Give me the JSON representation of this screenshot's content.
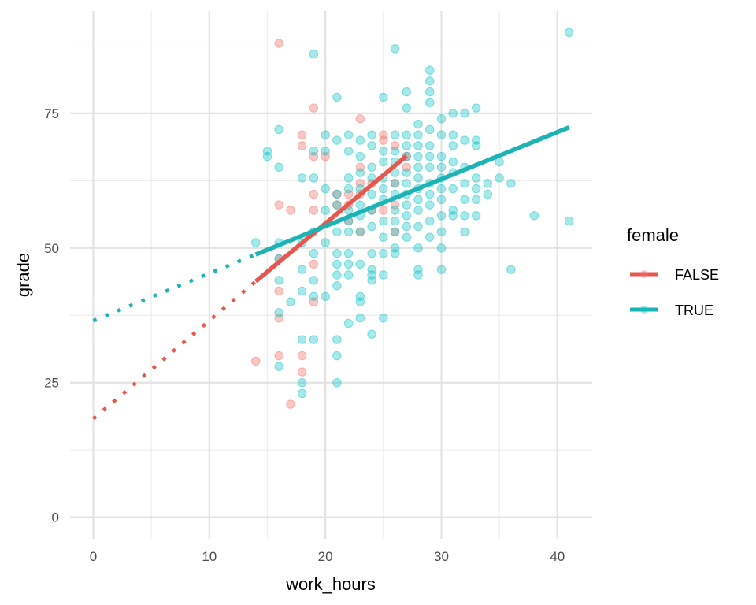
{
  "chart_data": {
    "type": "scatter",
    "title": "",
    "xlabel": "work_hours",
    "ylabel": "grade",
    "xlim": [
      -2,
      43
    ],
    "ylim": [
      -4,
      94
    ],
    "x_ticks": [
      0,
      10,
      20,
      30,
      40
    ],
    "x_tick_labels": [
      "0",
      "10",
      "20",
      "30",
      "40"
    ],
    "x_minor_ticks": [
      5,
      15,
      25,
      35
    ],
    "y_ticks": [
      0,
      25,
      50,
      75
    ],
    "y_tick_labels": [
      "0",
      "25",
      "50",
      "75"
    ],
    "y_minor_ticks": [
      12.5,
      37.5,
      62.5,
      87.5
    ],
    "grid": true,
    "legend": {
      "title": "female",
      "placement": "right"
    },
    "series": [
      {
        "name": "FALSE",
        "color": "#F8766D",
        "line_color": "#E8564D",
        "point_opacity": 0.4,
        "points": [
          [
            16,
            88
          ],
          [
            16,
            58
          ],
          [
            17,
            57
          ],
          [
            18,
            71
          ],
          [
            18,
            69
          ],
          [
            19,
            76
          ],
          [
            19,
            67
          ],
          [
            19,
            60
          ],
          [
            19,
            57
          ],
          [
            20,
            67
          ],
          [
            21,
            60
          ],
          [
            21,
            58
          ],
          [
            22,
            58
          ],
          [
            23,
            74
          ],
          [
            23,
            65
          ],
          [
            23,
            62
          ],
          [
            23,
            60
          ],
          [
            24,
            62
          ],
          [
            25,
            71
          ],
          [
            25,
            70
          ],
          [
            26,
            69
          ],
          [
            26,
            53
          ],
          [
            27,
            67
          ],
          [
            27,
            65
          ],
          [
            14,
            29
          ],
          [
            16,
            48
          ],
          [
            16,
            42
          ],
          [
            16,
            37
          ],
          [
            16,
            30
          ],
          [
            17,
            21
          ],
          [
            18,
            30
          ],
          [
            18,
            27
          ],
          [
            19,
            47
          ],
          [
            19,
            40
          ],
          [
            22,
            55
          ],
          [
            22,
            60
          ],
          [
            23,
            53
          ],
          [
            24,
            57
          ],
          [
            25,
            57
          ],
          [
            26,
            58
          ],
          [
            26,
            62
          ]
        ],
        "fit_solid": [
          [
            14,
            43.8
          ],
          [
            27,
            67.1
          ]
        ],
        "fit_dotted": [
          [
            0,
            18.3
          ],
          [
            14,
            43.8
          ]
        ]
      },
      {
        "name": "TRUE",
        "color": "#00BFC4",
        "line_color": "#1CB3B5",
        "point_opacity": 0.35,
        "points": [
          [
            41,
            90
          ],
          [
            19,
            86
          ],
          [
            26,
            87
          ],
          [
            14,
            51
          ],
          [
            15,
            68
          ],
          [
            15,
            67
          ],
          [
            16,
            72
          ],
          [
            16,
            65
          ],
          [
            16,
            51
          ],
          [
            16,
            48
          ],
          [
            16,
            44
          ],
          [
            16,
            38
          ],
          [
            16,
            28
          ],
          [
            17,
            40
          ],
          [
            18,
            63
          ],
          [
            18,
            51
          ],
          [
            18,
            46
          ],
          [
            18,
            42
          ],
          [
            18,
            33
          ],
          [
            18,
            25
          ],
          [
            18,
            23
          ],
          [
            19,
            68
          ],
          [
            19,
            63
          ],
          [
            19,
            53
          ],
          [
            19,
            49
          ],
          [
            19,
            44
          ],
          [
            19,
            41
          ],
          [
            19,
            33
          ],
          [
            20,
            71
          ],
          [
            20,
            68
          ],
          [
            20,
            61
          ],
          [
            20,
            57
          ],
          [
            20,
            51
          ],
          [
            20,
            41
          ],
          [
            21,
            78
          ],
          [
            21,
            70
          ],
          [
            21,
            60
          ],
          [
            21,
            58
          ],
          [
            21,
            53
          ],
          [
            21,
            49
          ],
          [
            21,
            47
          ],
          [
            21,
            45
          ],
          [
            21,
            43
          ],
          [
            21,
            33
          ],
          [
            21,
            30
          ],
          [
            21,
            25
          ],
          [
            22,
            71
          ],
          [
            22,
            68
          ],
          [
            22,
            63
          ],
          [
            22,
            61
          ],
          [
            22,
            57
          ],
          [
            22,
            55
          ],
          [
            22,
            53
          ],
          [
            22,
            49
          ],
          [
            22,
            47
          ],
          [
            22,
            45
          ],
          [
            22,
            36
          ],
          [
            23,
            70
          ],
          [
            23,
            67
          ],
          [
            23,
            64
          ],
          [
            23,
            61
          ],
          [
            23,
            58
          ],
          [
            23,
            56
          ],
          [
            23,
            53
          ],
          [
            23,
            47
          ],
          [
            23,
            41
          ],
          [
            23,
            40
          ],
          [
            23,
            37
          ],
          [
            24,
            71
          ],
          [
            24,
            69
          ],
          [
            24,
            65
          ],
          [
            24,
            63
          ],
          [
            24,
            60
          ],
          [
            24,
            57
          ],
          [
            24,
            54
          ],
          [
            24,
            49
          ],
          [
            24,
            46
          ],
          [
            24,
            45
          ],
          [
            24,
            44
          ],
          [
            24,
            34
          ],
          [
            25,
            78
          ],
          [
            25,
            68
          ],
          [
            25,
            66
          ],
          [
            25,
            63
          ],
          [
            25,
            61
          ],
          [
            25,
            59
          ],
          [
            25,
            55
          ],
          [
            25,
            52
          ],
          [
            25,
            49
          ],
          [
            25,
            45
          ],
          [
            25,
            37
          ],
          [
            26,
            71
          ],
          [
            26,
            68
          ],
          [
            26,
            66
          ],
          [
            26,
            64
          ],
          [
            26,
            62
          ],
          [
            26,
            60
          ],
          [
            26,
            57
          ],
          [
            26,
            55
          ],
          [
            26,
            53
          ],
          [
            26,
            50
          ],
          [
            26,
            49
          ],
          [
            27,
            79
          ],
          [
            27,
            76
          ],
          [
            27,
            71
          ],
          [
            27,
            69
          ],
          [
            27,
            67
          ],
          [
            27,
            64
          ],
          [
            27,
            62
          ],
          [
            27,
            60
          ],
          [
            27,
            58
          ],
          [
            27,
            56
          ],
          [
            27,
            54
          ],
          [
            27,
            52
          ],
          [
            28,
            73
          ],
          [
            28,
            71
          ],
          [
            28,
            69
          ],
          [
            28,
            67
          ],
          [
            28,
            65
          ],
          [
            28,
            63
          ],
          [
            28,
            61
          ],
          [
            28,
            59
          ],
          [
            28,
            57
          ],
          [
            28,
            54
          ],
          [
            28,
            50
          ],
          [
            28,
            46
          ],
          [
            28,
            45
          ],
          [
            29,
            83
          ],
          [
            29,
            81
          ],
          [
            29,
            79
          ],
          [
            29,
            77
          ],
          [
            29,
            72
          ],
          [
            29,
            69
          ],
          [
            29,
            67
          ],
          [
            29,
            65
          ],
          [
            29,
            62
          ],
          [
            29,
            60
          ],
          [
            29,
            58
          ],
          [
            29,
            55
          ],
          [
            29,
            52
          ],
          [
            30,
            74
          ],
          [
            30,
            71
          ],
          [
            30,
            67
          ],
          [
            30,
            65
          ],
          [
            30,
            63
          ],
          [
            30,
            61
          ],
          [
            30,
            59
          ],
          [
            30,
            56
          ],
          [
            30,
            53
          ],
          [
            30,
            50
          ],
          [
            30,
            46
          ],
          [
            31,
            75
          ],
          [
            31,
            71
          ],
          [
            31,
            69
          ],
          [
            31,
            66
          ],
          [
            31,
            64
          ],
          [
            31,
            61
          ],
          [
            31,
            57
          ],
          [
            31,
            56
          ],
          [
            32,
            75
          ],
          [
            32,
            70
          ],
          [
            32,
            65
          ],
          [
            32,
            62
          ],
          [
            32,
            59
          ],
          [
            32,
            56
          ],
          [
            32,
            53
          ],
          [
            33,
            76
          ],
          [
            33,
            70
          ],
          [
            33,
            69
          ],
          [
            33,
            63
          ],
          [
            33,
            61
          ],
          [
            33,
            59
          ],
          [
            33,
            56
          ],
          [
            34,
            62
          ],
          [
            34,
            60
          ],
          [
            35,
            66
          ],
          [
            35,
            63
          ],
          [
            36,
            62
          ],
          [
            36,
            46
          ],
          [
            38,
            56
          ],
          [
            41,
            55
          ]
        ],
        "fit_solid": [
          [
            14,
            48.8
          ],
          [
            41,
            72.4
          ]
        ],
        "fit_dotted": [
          [
            0,
            36.5
          ],
          [
            14,
            48.8
          ]
        ]
      }
    ]
  }
}
